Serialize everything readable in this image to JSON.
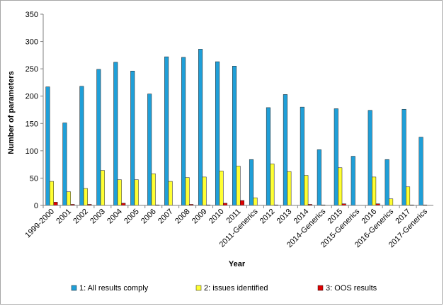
{
  "chart_data": {
    "type": "bar",
    "xlabel": "Year",
    "ylabel": "Number of parameters",
    "ylim": [
      0,
      350
    ],
    "yticks": [
      0,
      50,
      100,
      150,
      200,
      250,
      300,
      350
    ],
    "grid": false,
    "legend_position": "bottom",
    "categories": [
      "1999-2000",
      "2001",
      "2002",
      "2003",
      "2004",
      "2005",
      "2006",
      "2007",
      "2008",
      "2009",
      "2010",
      "2011",
      "2011-Generics",
      "2012",
      "2013",
      "2014",
      "2014-Generics",
      "2015",
      "2015-Generics",
      "2016",
      "2016-Generics",
      "2017",
      "2017-Generics"
    ],
    "series": [
      {
        "name": "1: All results comply",
        "color": "#1f9fd8",
        "values": [
          217,
          151,
          218,
          249,
          262,
          246,
          204,
          272,
          271,
          286,
          263,
          255,
          84,
          179,
          203,
          180,
          102,
          177,
          90,
          174,
          84,
          176,
          125
        ]
      },
      {
        "name": "2: issues identified",
        "color": "#ffff33",
        "values": [
          44,
          25,
          31,
          64,
          47,
          47,
          58,
          44,
          51,
          52,
          63,
          72,
          14,
          76,
          62,
          55,
          1,
          69,
          0,
          52,
          12,
          34,
          1
        ]
      },
      {
        "name": "3: OOS results",
        "color": "#e00000",
        "values": [
          6,
          2,
          2,
          0,
          4,
          0,
          1,
          0,
          2,
          1,
          4,
          9,
          0,
          1,
          0,
          2,
          0,
          3,
          0,
          3,
          0,
          1,
          0
        ]
      }
    ]
  }
}
